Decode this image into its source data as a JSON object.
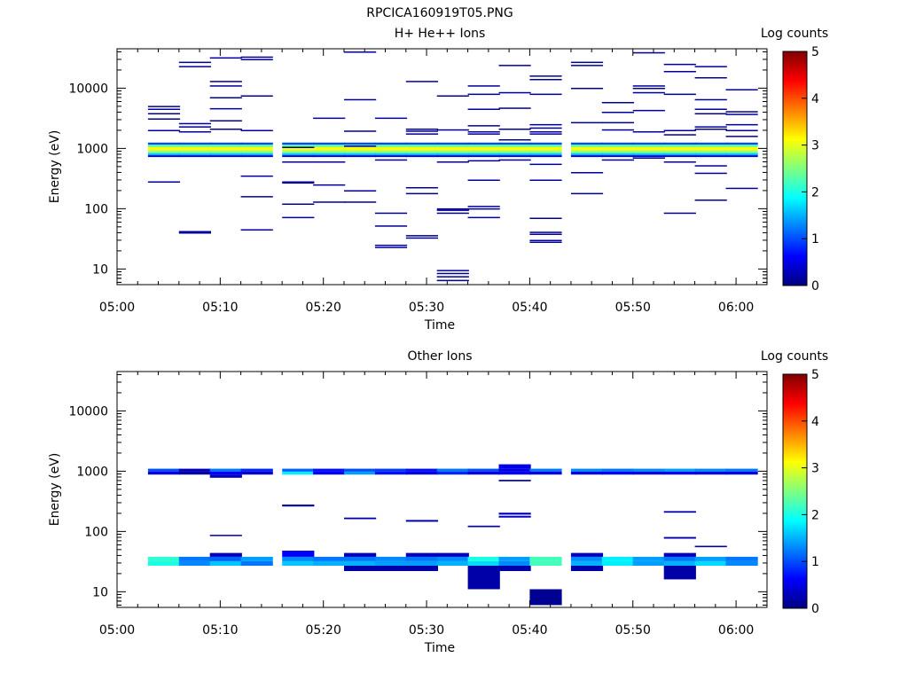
{
  "figure_title": "RPCICA160919T05.PNG",
  "colors": {
    "colormap": [
      "#00007f",
      "#0000ff",
      "#007fff",
      "#00ffff",
      "#7fff7f",
      "#ffff00",
      "#ff7f00",
      "#ff0000",
      "#7f0000"
    ]
  },
  "chart_data": [
    {
      "type": "heatmap",
      "title": "H+ He++ Ions",
      "xlabel": "Time",
      "ylabel": "Energy (eV)",
      "x_ticks": [
        "05:00",
        "05:10",
        "05:20",
        "05:30",
        "05:40",
        "05:50",
        "06:00"
      ],
      "xlim": [
        "05:00",
        "06:03"
      ],
      "y_scale": "log",
      "ylim": [
        5.5,
        45000
      ],
      "y_ticks": [
        "10",
        "100",
        "1000",
        "10000"
      ],
      "colorbar": {
        "label": "Log counts",
        "range": [
          0,
          5
        ],
        "ticks": [
          "0",
          "1",
          "2",
          "3",
          "4",
          "5"
        ]
      },
      "time_bins": [
        "05:03",
        "05:06",
        "05:09",
        "05:12",
        "05:16",
        "05:19",
        "05:22",
        "05:25",
        "05:28",
        "05:31",
        "05:34",
        "05:37",
        "05:40",
        "05:44",
        "05:47",
        "05:50",
        "05:53",
        "05:56",
        "05:59"
      ],
      "band": {
        "energy_range": [
          720,
          1250
        ],
        "rows": [
          {
            "energy": [
              1150,
              1250
            ],
            "value": 1.0
          },
          {
            "energy": [
              1050,
              1150
            ],
            "value": 2.4
          },
          {
            "energy": [
              950,
              1050
            ],
            "value": 3.1
          },
          {
            "energy": [
              880,
              950
            ],
            "value": 2.9
          },
          {
            "energy": [
              820,
              880
            ],
            "value": 2.2
          },
          {
            "energy": [
              770,
              820
            ],
            "value": 1.5
          },
          {
            "energy": [
              720,
              770
            ],
            "value": 0.5
          }
        ]
      },
      "sparse_energies": [
        [
          5000,
          4500,
          3800,
          3100,
          2000,
          280
        ],
        [
          27000,
          23000,
          2600,
          2300,
          1900,
          42,
          40
        ],
        [
          32000,
          13000,
          11000,
          7000,
          4600,
          2900,
          2100
        ],
        [
          33000,
          30000,
          7500,
          2000,
          350,
          160,
          45
        ],
        [
          1050,
          600,
          280,
          270,
          120,
          72
        ],
        [
          3200,
          600,
          250,
          130
        ],
        [
          40000,
          6500,
          1950,
          1100,
          200,
          130
        ],
        [
          3200,
          650,
          85,
          52,
          25,
          23
        ],
        [
          13000,
          2100,
          1950,
          1750,
          225,
          180,
          36,
          33
        ],
        [
          7500,
          2050,
          600,
          100,
          95,
          85,
          9.5,
          8.5,
          7.5,
          6.5
        ],
        [
          11000,
          8000,
          4500,
          2400,
          1900,
          1750,
          630,
          300,
          110,
          100,
          72
        ],
        [
          24000,
          8500,
          4700,
          1400,
          2100,
          650
        ],
        [
          16000,
          14000,
          8000,
          2500,
          2200,
          1900,
          1750,
          550,
          300,
          70,
          41,
          38,
          30,
          28
        ],
        [
          27000,
          24000,
          10000,
          2700,
          400,
          180
        ],
        [
          5800,
          4000,
          2700,
          2050,
          650
        ],
        [
          39000,
          11000,
          10000,
          8500,
          4300,
          1900,
          700
        ],
        [
          25000,
          19000,
          8000,
          2000,
          1700,
          600,
          85
        ],
        [
          23000,
          15000,
          6500,
          4500,
          3800,
          2300,
          2100,
          520,
          390,
          140
        ],
        [
          9500,
          4100,
          3700,
          2500,
          2000,
          1600,
          220
        ]
      ]
    },
    {
      "type": "heatmap",
      "title": "Other Ions",
      "xlabel": "Time",
      "ylabel": "Energy (eV)",
      "x_ticks": [
        "05:00",
        "05:10",
        "05:20",
        "05:30",
        "05:40",
        "05:50",
        "06:00"
      ],
      "xlim": [
        "05:00",
        "06:03"
      ],
      "y_scale": "log",
      "ylim": [
        5.5,
        45000
      ],
      "y_ticks": [
        "10",
        "100",
        "1000",
        "10000"
      ],
      "colorbar": {
        "label": "Log counts",
        "range": [
          0,
          5
        ],
        "ticks": [
          "0",
          "1",
          "2",
          "3",
          "4",
          "5"
        ]
      },
      "time_bins": [
        "05:03",
        "05:06",
        "05:09",
        "05:12",
        "05:16",
        "05:19",
        "05:22",
        "05:25",
        "05:28",
        "05:31",
        "05:34",
        "05:37",
        "05:40",
        "05:44",
        "05:47",
        "05:50",
        "05:53",
        "05:56",
        "05:59"
      ],
      "high_band": {
        "energy_range": [
          880,
          1100
        ],
        "top_values": [
          1.0,
          0.3,
          1.2,
          0.8,
          1.1,
          0.7,
          1.0,
          0.9,
          0.7,
          1.2,
          1.0,
          0.5,
          1.2,
          1.3,
          1.2,
          1.3,
          1.4,
          1.3,
          1.2
        ],
        "bottom_values": [
          0.5,
          0.2,
          0.6,
          0.4,
          1.8,
          0.6,
          1.4,
          0.7,
          0.5,
          0.8,
          0.5,
          0.6,
          0.5,
          0.5,
          0.6,
          0.5,
          0.6,
          0.5,
          0.5
        ]
      },
      "low_band": {
        "energy_range": [
          27,
          38
        ],
        "top_values": [
          2.1,
          1.2,
          1.1,
          1.4,
          1.3,
          1.2,
          1.2,
          1.3,
          1.2,
          1.3,
          2.0,
          1.4,
          2.2,
          1.3,
          1.8,
          1.4,
          1.2,
          1.4,
          1.2
        ],
        "bottom_values": [
          2.0,
          1.3,
          1.6,
          1.2,
          1.6,
          1.5,
          1.5,
          1.4,
          1.4,
          1.5,
          1.7,
          1.3,
          2.2,
          1.5,
          1.8,
          1.4,
          1.5,
          1.7,
          1.3
        ]
      },
      "sparse": [
        {
          "bin": 2,
          "energy": [
            780,
            880
          ],
          "value": 0.3
        },
        {
          "bin": 11,
          "energy": [
            1100,
            1300
          ],
          "value": 0.5
        },
        {
          "bin": 11,
          "energy": [
            680,
            720
          ],
          "value": 0.2
        },
        {
          "bin": 2,
          "energy": [
            84,
            88
          ],
          "value": 0.2
        },
        {
          "bin": 4,
          "energy": [
            260,
            280
          ],
          "value": 0.2
        },
        {
          "bin": 6,
          "energy": [
            160,
            170
          ],
          "value": 0.2
        },
        {
          "bin": 8,
          "energy": [
            145,
            155
          ],
          "value": 0.2
        },
        {
          "bin": 10,
          "energy": [
            118,
            125
          ],
          "value": 0.2
        },
        {
          "bin": 11,
          "energy": [
            190,
            205
          ],
          "value": 0.3
        },
        {
          "bin": 11,
          "energy": [
            170,
            182
          ],
          "value": 0.3
        },
        {
          "bin": 16,
          "energy": [
            205,
            218
          ],
          "value": 0.2
        },
        {
          "bin": 16,
          "energy": [
            76,
            81
          ],
          "value": 0.2
        },
        {
          "bin": 17,
          "energy": [
            55,
            58
          ],
          "value": 0.2
        },
        {
          "bin": 2,
          "energy": [
            38,
            44
          ],
          "value": 0.3
        },
        {
          "bin": 4,
          "energy": [
            38,
            48
          ],
          "value": 0.6
        },
        {
          "bin": 6,
          "energy": [
            38,
            44
          ],
          "value": 0.3
        },
        {
          "bin": 8,
          "energy": [
            38,
            44
          ],
          "value": 0.3
        },
        {
          "bin": 9,
          "energy": [
            38,
            44
          ],
          "value": 0.3
        },
        {
          "bin": 13,
          "energy": [
            38,
            44
          ],
          "value": 0.3
        },
        {
          "bin": 16,
          "energy": [
            38,
            44
          ],
          "value": 0.3
        },
        {
          "bin": 6,
          "energy": [
            22,
            27
          ],
          "value": 0.2
        },
        {
          "bin": 7,
          "energy": [
            22,
            27
          ],
          "value": 0.2
        },
        {
          "bin": 8,
          "energy": [
            22,
            27
          ],
          "value": 0.2
        },
        {
          "bin": 10,
          "energy": [
            11,
            27
          ],
          "value": 0.2
        },
        {
          "bin": 11,
          "energy": [
            22,
            27
          ],
          "value": 0.2
        },
        {
          "bin": 13,
          "energy": [
            22,
            27
          ],
          "value": 0.2
        },
        {
          "bin": 16,
          "energy": [
            16,
            27
          ],
          "value": 0.2
        },
        {
          "bin": 12,
          "energy": [
            6.0,
            11
          ],
          "value": 0.1
        }
      ]
    }
  ]
}
